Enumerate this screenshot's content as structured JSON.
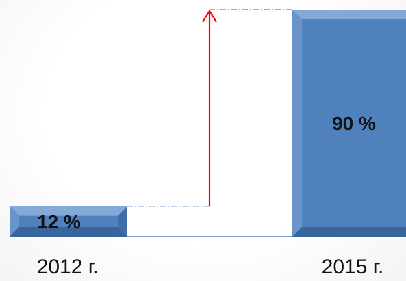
{
  "chart_data": {
    "type": "bar",
    "categories": [
      "2012 г.",
      "2015 г."
    ],
    "values": [
      12,
      90
    ],
    "value_labels": [
      "12 %",
      "90 %"
    ],
    "ylim": [
      0,
      100
    ],
    "bar_color": "#4f81bd",
    "arrow_color": "#ff0000",
    "connector_color": "#4f81bd",
    "annotations": [
      "growth-arrow"
    ]
  }
}
